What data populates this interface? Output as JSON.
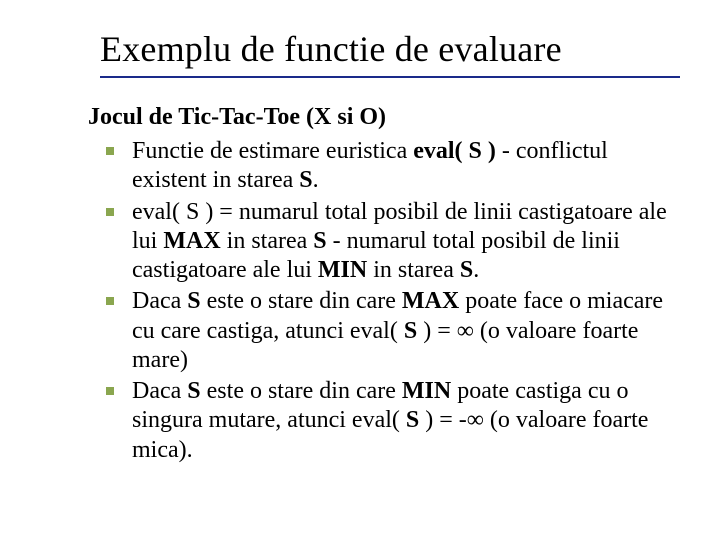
{
  "title": "Exemplu de functie de evaluare",
  "subtitle_html": "Jocul de Tic‑Tac‑Toe (X si O)",
  "bullets": [
    "Functie de estimare euristica <b>eval( S )</b> - conflictul existent in starea <b>S</b>.",
    "eval( S ) = numarul total posibil de linii castigatoare ale lui <b>MAX</b> in starea <b>S</b> - numarul total posibil de linii castigatoare ale lui <b>MIN</b> in starea <b>S</b>.",
    "Daca <b>S</b> este o stare din care <b>MAX</b> poate face o miacare cu care castiga, atunci eval( <b>S</b> ) = &infin; (o valoare foarte mare)",
    "Daca <b>S</b> este o stare din care <b>MIN</b> poate castiga cu o singura mutare, atunci eval( <b>S</b> ) = -&infin; (o valoare foarte mica)."
  ]
}
